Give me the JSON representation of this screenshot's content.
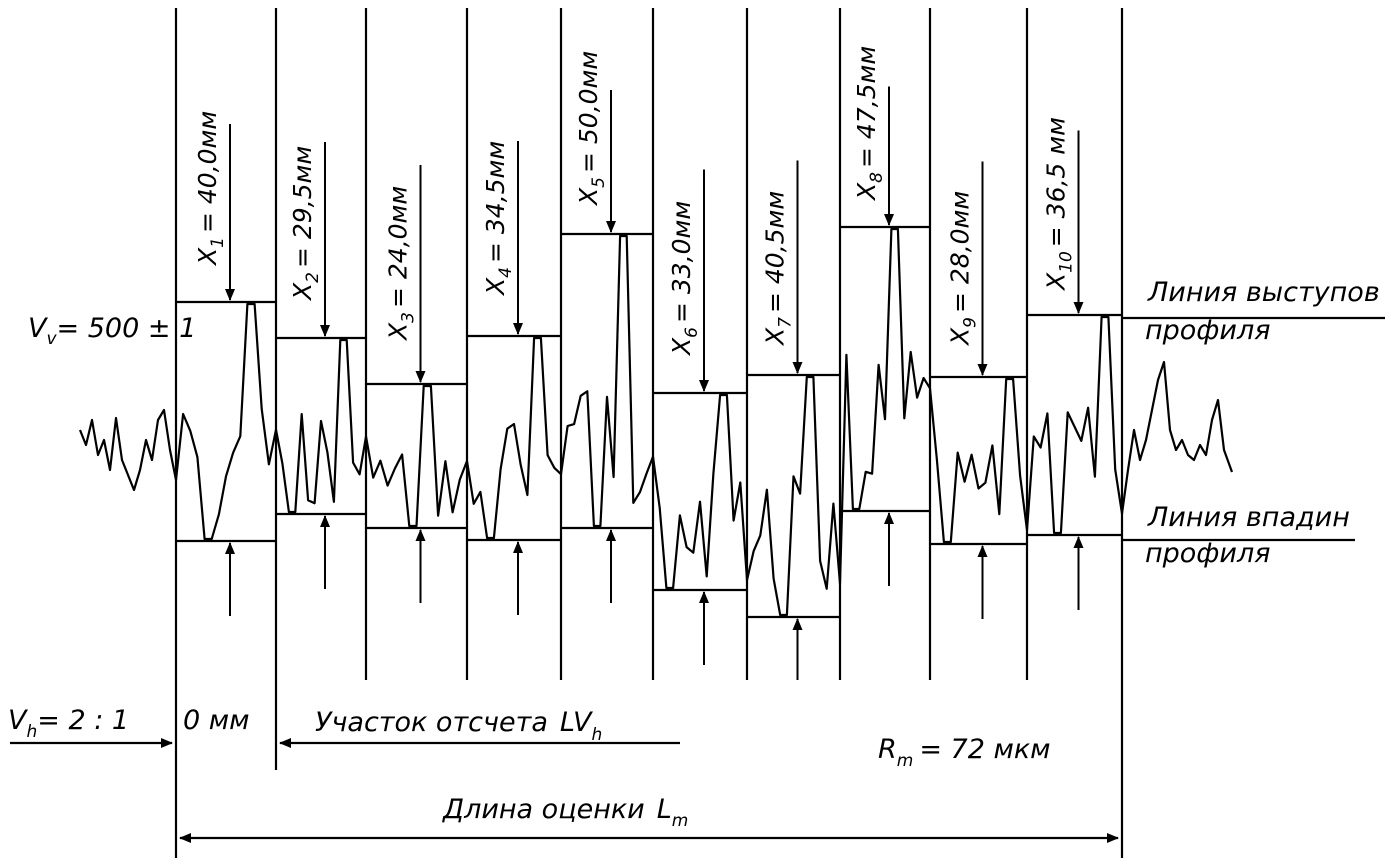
{
  "scales": {
    "vertical_prefix": "V",
    "vertical_sub": "v",
    "vertical_value": "= 500 ± 1",
    "horizontal_prefix": "V",
    "horizontal_sub": "h",
    "horizontal_value": "= 2 : 1"
  },
  "zero_mark": "0 мм",
  "sampling_section": {
    "text": "Участок отсчета",
    "symbol": "LV",
    "sub": "h"
  },
  "evaluation_length": {
    "text": "Длина оценки",
    "symbol": "L",
    "sub": "m"
  },
  "rm": {
    "symbol": "R",
    "sub": "m",
    "value": "= 72 мкм"
  },
  "peak_line_label": [
    "Линия выступов",
    "профиля"
  ],
  "valley_line_label": [
    "Линия впадин",
    "профиля"
  ],
  "measurements": [
    {
      "name": "X",
      "index": "1",
      "value": "= 40,0мм"
    },
    {
      "name": "X",
      "index": "2",
      "value": "= 29,5мм"
    },
    {
      "name": "X",
      "index": "3",
      "value": "= 24,0мм"
    },
    {
      "name": "X",
      "index": "4",
      "value": "= 34,5мм"
    },
    {
      "name": "X",
      "index": "5",
      "value": "= 50,0мм"
    },
    {
      "name": "X",
      "index": "6",
      "value": "= 33,0мм"
    },
    {
      "name": "X",
      "index": "7",
      "value": "= 40,5мм"
    },
    {
      "name": "X",
      "index": "8",
      "value": "= 47,5мм"
    },
    {
      "name": "X",
      "index": "9",
      "value": "= 28,0мм"
    },
    {
      "name": "X",
      "index": "10",
      "value": "= 36,5 мм"
    }
  ]
}
